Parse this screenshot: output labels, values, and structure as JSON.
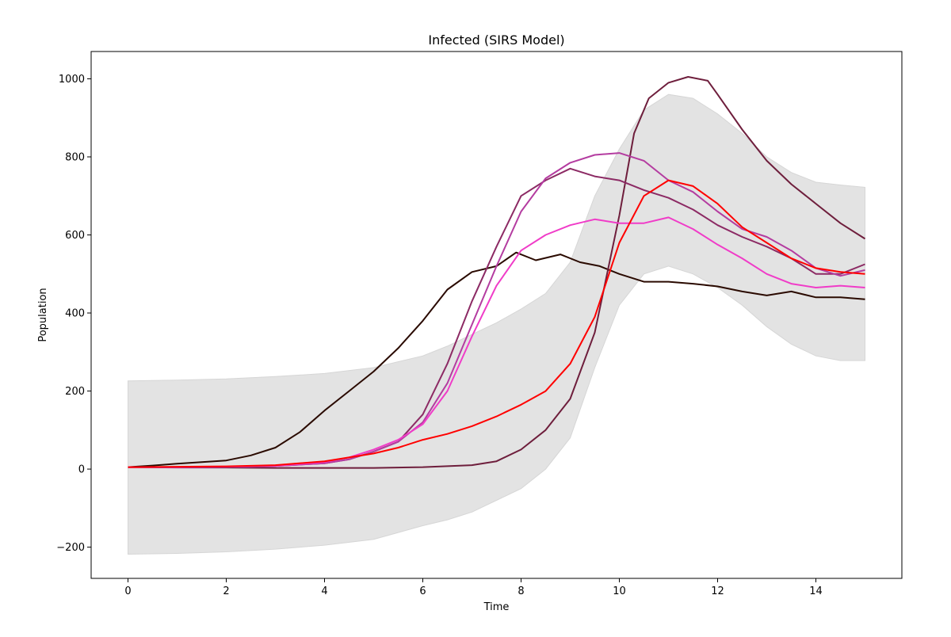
{
  "chart_data": {
    "type": "line",
    "title": "Infected (SIRS Model)",
    "xlabel": "Time",
    "ylabel": "Population",
    "xlim": [
      -0.75,
      15.75
    ],
    "ylim": [
      -280,
      1070
    ],
    "xticks": [
      0,
      2,
      4,
      6,
      8,
      10,
      12,
      14
    ],
    "yticks": [
      -200,
      0,
      200,
      400,
      600,
      800,
      1000
    ],
    "ytick_labels": [
      "−200",
      "0",
      "200",
      "400",
      "600",
      "800",
      "1000"
    ],
    "grid": false,
    "legend": "none",
    "band": {
      "color": "#e3e3e3",
      "x": [
        0,
        1,
        2,
        3,
        4,
        5,
        6,
        6.5,
        7,
        7.5,
        8,
        8.5,
        9,
        9.5,
        10,
        10.5,
        11,
        11.5,
        12,
        12.5,
        13,
        13.5,
        14,
        14.5,
        15
      ],
      "upper": [
        226,
        228,
        231,
        237,
        245,
        260,
        290,
        315,
        345,
        375,
        410,
        450,
        530,
        700,
        820,
        920,
        960,
        950,
        910,
        860,
        800,
        760,
        735,
        728,
        722
      ],
      "lower": [
        -218,
        -216,
        -212,
        -205,
        -195,
        -180,
        -145,
        -130,
        -110,
        -80,
        -50,
        0,
        80,
        260,
        420,
        500,
        520,
        500,
        465,
        420,
        365,
        320,
        290,
        278,
        278
      ]
    },
    "series": [
      {
        "color": "#2a0a00",
        "x": [
          0,
          0.5,
          1,
          1.5,
          2,
          2.5,
          3,
          3.5,
          4,
          4.5,
          5,
          5.5,
          6,
          6.5,
          7,
          7.5,
          7.9,
          8.3,
          8.8,
          9.2,
          9.6,
          10,
          10.5,
          11,
          11.5,
          12,
          12.5,
          13,
          13.5,
          14,
          14.5,
          15
        ],
        "y": [
          5,
          9,
          14,
          18,
          22,
          35,
          55,
          95,
          150,
          200,
          250,
          310,
          380,
          460,
          505,
          520,
          555,
          535,
          550,
          530,
          520,
          500,
          480,
          480,
          475,
          468,
          455,
          445,
          455,
          440,
          440,
          435
        ]
      },
      {
        "color": "#6e1e3c",
        "x": [
          0,
          1,
          2,
          3,
          4,
          5,
          6,
          7,
          7.5,
          8,
          8.5,
          9,
          9.5,
          10,
          10.3,
          10.6,
          11,
          11.4,
          11.8,
          12,
          12.5,
          13,
          13.5,
          14,
          14.5,
          15
        ],
        "y": [
          5,
          4,
          4,
          3,
          3,
          3,
          5,
          10,
          20,
          50,
          100,
          180,
          350,
          650,
          860,
          950,
          990,
          1005,
          995,
          960,
          870,
          790,
          730,
          680,
          630,
          590
        ]
      },
      {
        "color": "#8c2a64",
        "x": [
          0,
          1,
          2,
          3,
          4,
          4.5,
          5,
          5.5,
          6,
          6.5,
          7,
          7.5,
          8,
          8.5,
          9,
          9.5,
          10,
          10.5,
          11,
          11.5,
          12,
          12.5,
          13,
          13.5,
          14,
          14.5,
          15
        ],
        "y": [
          5,
          5,
          6,
          8,
          15,
          25,
          45,
          70,
          140,
          270,
          430,
          570,
          700,
          740,
          770,
          750,
          740,
          715,
          695,
          665,
          625,
          595,
          570,
          540,
          500,
          500,
          525
        ]
      },
      {
        "color": "#b43ca0",
        "x": [
          0,
          1,
          2,
          3,
          4,
          4.5,
          5,
          5.5,
          6,
          6.5,
          7,
          7.5,
          8,
          8.5,
          9,
          9.5,
          10,
          10.5,
          11,
          11.5,
          12,
          12.5,
          13,
          13.5,
          14,
          14.5,
          15
        ],
        "y": [
          5,
          5,
          6,
          8,
          15,
          25,
          45,
          70,
          120,
          220,
          370,
          520,
          660,
          745,
          785,
          805,
          810,
          790,
          740,
          710,
          660,
          615,
          595,
          560,
          515,
          495,
          510
        ]
      },
      {
        "color": "#f03cc8",
        "x": [
          0,
          1,
          2,
          3,
          4,
          4.5,
          5,
          5.5,
          6,
          6.5,
          7,
          7.5,
          8,
          8.5,
          9,
          9.5,
          10,
          10.5,
          11,
          11.5,
          12,
          12.5,
          13,
          13.5,
          14,
          14.5,
          15
        ],
        "y": [
          5,
          5,
          6,
          8,
          18,
          30,
          50,
          75,
          115,
          200,
          340,
          470,
          560,
          600,
          625,
          640,
          630,
          630,
          645,
          615,
          575,
          540,
          500,
          475,
          465,
          470,
          465
        ]
      },
      {
        "color": "#ff0000",
        "x": [
          0,
          1,
          2,
          3,
          4,
          5,
          5.5,
          6,
          6.5,
          7,
          7.5,
          8,
          8.5,
          9,
          9.5,
          10,
          10.5,
          11,
          11.5,
          12,
          12.5,
          13,
          13.5,
          14,
          14.5,
          15
        ],
        "y": [
          5,
          6,
          7,
          10,
          20,
          40,
          55,
          75,
          90,
          110,
          135,
          165,
          200,
          270,
          390,
          580,
          700,
          740,
          725,
          680,
          620,
          580,
          540,
          515,
          505,
          500
        ]
      }
    ]
  }
}
